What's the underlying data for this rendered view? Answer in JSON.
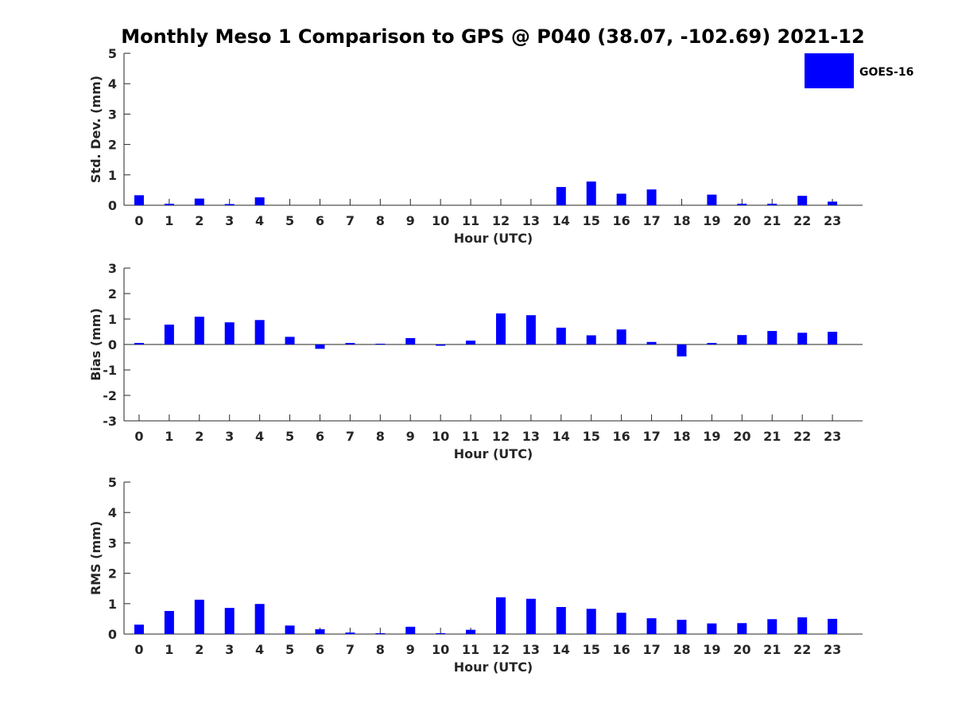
{
  "title": "Monthly Meso 1 Comparison to GPS @ P040 (38.07, -102.69) 2021-12",
  "legend": {
    "label": "GOES-16",
    "color": "#0000ff"
  },
  "chart_data": [
    {
      "type": "bar",
      "title": "Monthly Meso 1 Comparison to GPS @ P040 (38.07, -102.69) 2021-12",
      "xlabel": "Hour (UTC)",
      "ylabel": "Std. Dev. (mm)",
      "ylim": [
        0,
        5
      ],
      "yticks": [
        "0",
        "1",
        "2",
        "3",
        "4",
        "5"
      ],
      "categories": [
        "0",
        "1",
        "2",
        "3",
        "4",
        "5",
        "6",
        "7",
        "8",
        "9",
        "10",
        "11",
        "12",
        "13",
        "14",
        "15",
        "16",
        "17",
        "18",
        "19",
        "20",
        "21",
        "22",
        "23"
      ],
      "series": [
        {
          "name": "GOES-16",
          "values": [
            0.33,
            0.05,
            0.22,
            0.04,
            0.26,
            0,
            0,
            0,
            0,
            0,
            0,
            0,
            0,
            0,
            0.6,
            0.78,
            0.38,
            0.52,
            0,
            0.35,
            0.05,
            0.05,
            0.31,
            0.12
          ]
        }
      ]
    },
    {
      "type": "bar",
      "title": "",
      "xlabel": "Hour (UTC)",
      "ylabel": "Bias (mm)",
      "ylim": [
        -3,
        3
      ],
      "yticks": [
        "-3",
        "-2",
        "-1",
        "0",
        "1",
        "2",
        "3"
      ],
      "categories": [
        "0",
        "1",
        "2",
        "3",
        "4",
        "5",
        "6",
        "7",
        "8",
        "9",
        "10",
        "11",
        "12",
        "13",
        "14",
        "15",
        "16",
        "17",
        "18",
        "19",
        "20",
        "21",
        "22",
        "23"
      ],
      "series": [
        {
          "name": "GOES-16",
          "values": [
            0.06,
            0.78,
            1.09,
            0.87,
            0.96,
            0.3,
            -0.17,
            0.06,
            0.03,
            0.25,
            -0.05,
            0.15,
            1.22,
            1.15,
            0.66,
            0.36,
            0.59,
            0.1,
            -0.47,
            0.06,
            0.37,
            0.53,
            0.46,
            0.5
          ]
        }
      ]
    },
    {
      "type": "bar",
      "title": "",
      "xlabel": "Hour (UTC)",
      "ylabel": "RMS (mm)",
      "ylim": [
        0,
        5
      ],
      "yticks": [
        "0",
        "1",
        "2",
        "3",
        "4",
        "5"
      ],
      "categories": [
        "0",
        "1",
        "2",
        "3",
        "4",
        "5",
        "6",
        "7",
        "8",
        "9",
        "10",
        "11",
        "12",
        "13",
        "14",
        "15",
        "16",
        "17",
        "18",
        "19",
        "20",
        "21",
        "22",
        "23"
      ],
      "series": [
        {
          "name": "GOES-16",
          "values": [
            0.31,
            0.76,
            1.13,
            0.86,
            0.99,
            0.28,
            0.16,
            0.05,
            0.03,
            0.24,
            0.03,
            0.14,
            1.21,
            1.16,
            0.89,
            0.83,
            0.7,
            0.52,
            0.47,
            0.35,
            0.36,
            0.49,
            0.55,
            0.5
          ]
        }
      ]
    }
  ]
}
